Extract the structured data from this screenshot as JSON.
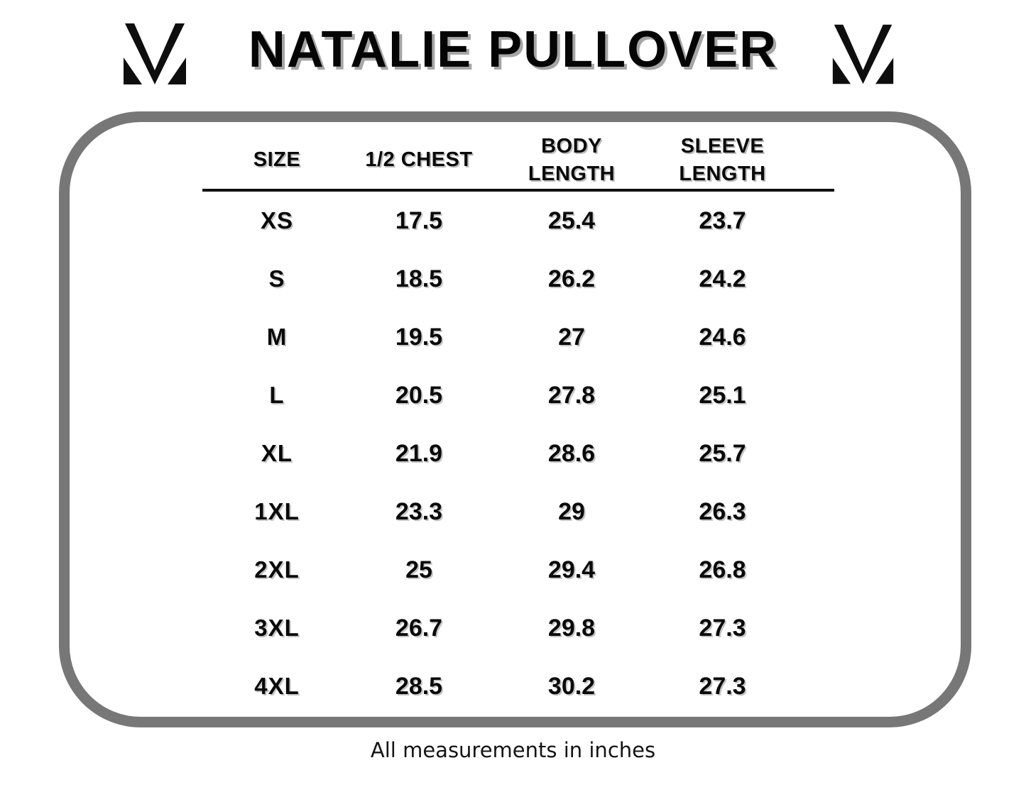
{
  "header": {
    "title": "NATALIE PULLOVER",
    "left_logo_icon": "m-monogram-icon",
    "right_logo_icon": "m-monogram-icon"
  },
  "chart_data": {
    "type": "table",
    "title": "NATALIE PULLOVER",
    "columns": [
      "SIZE",
      "1/2 CHEST",
      "BODY LENGTH",
      "SLEEVE LENGTH"
    ],
    "columns_display": [
      "SIZE",
      "1/2 CHEST",
      "BODY\nLENGTH",
      "SLEEVE\nLENGTH"
    ],
    "rows": [
      [
        "XS",
        17.5,
        25.4,
        23.7
      ],
      [
        "S",
        18.5,
        26.2,
        24.2
      ],
      [
        "M",
        19.5,
        27,
        24.6
      ],
      [
        "L",
        20.5,
        27.8,
        25.1
      ],
      [
        "XL",
        21.9,
        28.6,
        25.7
      ],
      [
        "1XL",
        23.3,
        29,
        26.3
      ],
      [
        "2XL",
        25,
        29.4,
        26.8
      ],
      [
        "3XL",
        26.7,
        29.8,
        27.3
      ],
      [
        "4XL",
        28.5,
        30.2,
        27.3
      ]
    ],
    "units_note": "All measurements in inches",
    "layout": {
      "header_divider": true,
      "grid": "none"
    }
  },
  "footer": {
    "note": "All measurements in inches"
  },
  "colors": {
    "text": "#0a0a0a",
    "frame_border": "#777777",
    "title_shadow": "#a6a6a6",
    "header_rule": "#101010",
    "background": "#ffffff"
  }
}
